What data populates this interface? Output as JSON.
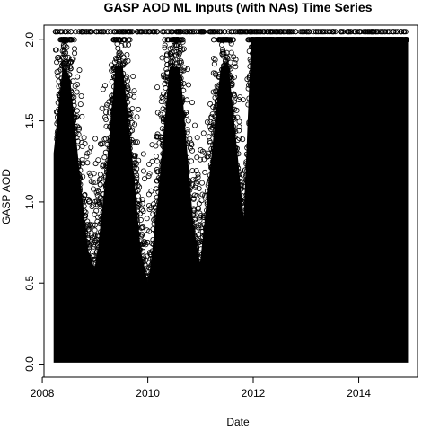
{
  "chart_data": {
    "type": "scatter",
    "title": "GASP AOD ML Inputs (with NAs) Time Series",
    "xlabel": "Date",
    "ylabel": "GASP AOD",
    "xlim": [
      "2008-01-13",
      "2015-02-12"
    ],
    "ylim": [
      -0.08,
      2.09
    ],
    "x_ticks": [
      "2008",
      "2010",
      "2012",
      "2014"
    ],
    "y_ticks": [
      "0.0",
      "0.5",
      "1.0",
      "1.5",
      "2.0"
    ],
    "grid": false,
    "marker": "open-circle",
    "colors": {
      "points": "#000000",
      "background": "#ffffff"
    },
    "series": [
      {
        "x": [
          "2008-04-01",
          "2008-06-01",
          "2008-07-01",
          "2008-09-01",
          "2008-11-01",
          "2009-01-01",
          "2009-02-01",
          "2009-04-01",
          "2009-06-01",
          "2009-07-01",
          "2009-09-01",
          "2009-11-01",
          "2010-01-01",
          "2010-02-01",
          "2010-04-01",
          "2010-05-20",
          "2010-06-10",
          "2010-08-01",
          "2010-09-01",
          "2010-11-01",
          "2011-01-01",
          "2011-02-01",
          "2011-04-01",
          "2011-06-01",
          "2011-07-01",
          "2011-09-01",
          "2011-11-01",
          "2012-01-01",
          "2012-03-01",
          "2012-06-01",
          "2012-09-01",
          "2012-12-01",
          "2013-03-01",
          "2013-06-01",
          "2013-09-01",
          "2013-12-01",
          "2014-03-01",
          "2014-06-01",
          "2014-09-01",
          "2014-12-01"
        ],
        "y": [
          1.3,
          1.82,
          1.75,
          1.2,
          0.7,
          0.55,
          0.7,
          1.2,
          1.82,
          1.82,
          1.3,
          0.7,
          0.45,
          0.6,
          1.1,
          1.6,
          1.82,
          1.82,
          1.5,
          0.85,
          0.55,
          0.8,
          1.3,
          1.82,
          1.85,
          1.3,
          0.75,
          2.05,
          2.05,
          2.05,
          2.05,
          2.05,
          2.05,
          2.05,
          2.05,
          2.05,
          2.05,
          2.05,
          2.05,
          2.05
        ]
      }
    ],
    "top_cap_value": 2.05
  }
}
